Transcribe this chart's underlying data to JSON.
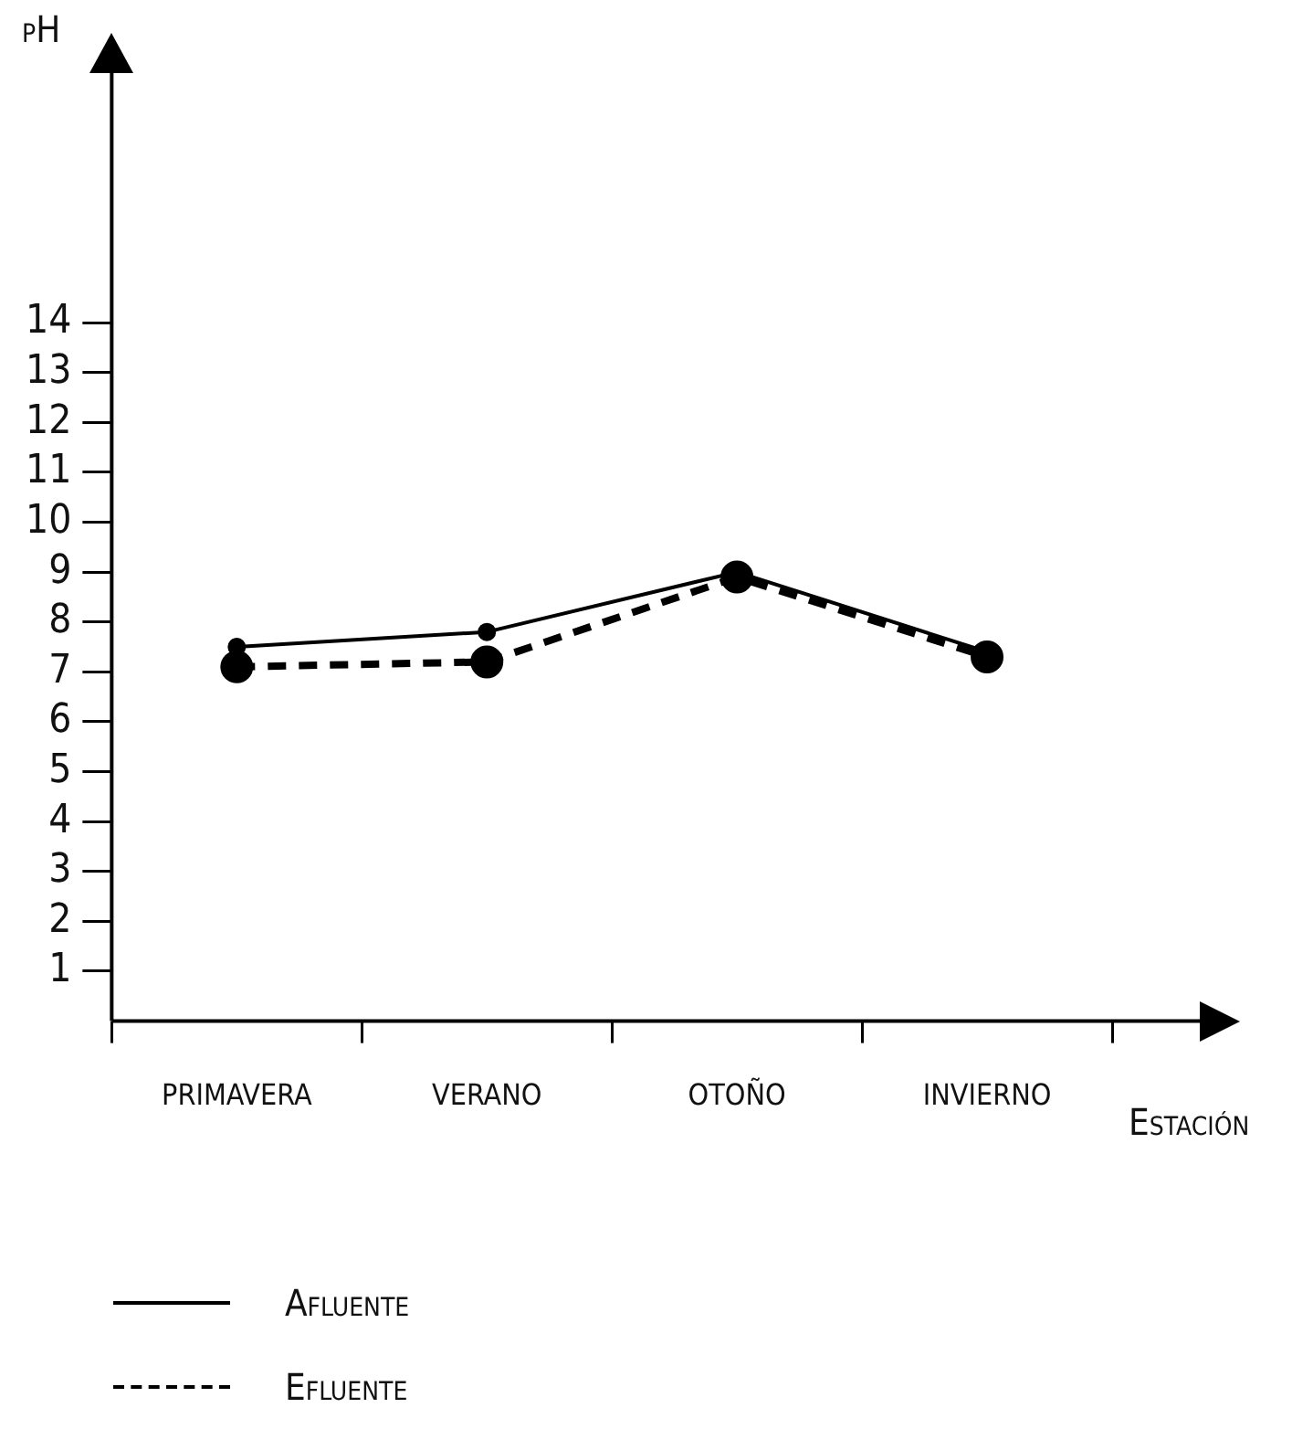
{
  "chart_data": {
    "type": "line",
    "ylabel": "pH",
    "xlabel": "Estación",
    "categories": [
      "PRIMAVERA",
      "VERANO",
      "OTOÑO",
      "INVIERNO"
    ],
    "ylim": [
      0,
      19
    ],
    "yticks": [
      1,
      2,
      3,
      4,
      5,
      6,
      7,
      8,
      9,
      10,
      11,
      12,
      13,
      14
    ],
    "series": [
      {
        "name": "Afluente",
        "color": "#000000",
        "line_style": "solid",
        "values": [
          7.5,
          7.8,
          9.0,
          7.4
        ]
      },
      {
        "name": "Efluente",
        "color": "#000000",
        "line_style": "dashed",
        "values": [
          7.1,
          7.2,
          8.9,
          7.3
        ]
      }
    ],
    "marker": "circle",
    "legend": "bottom left"
  }
}
